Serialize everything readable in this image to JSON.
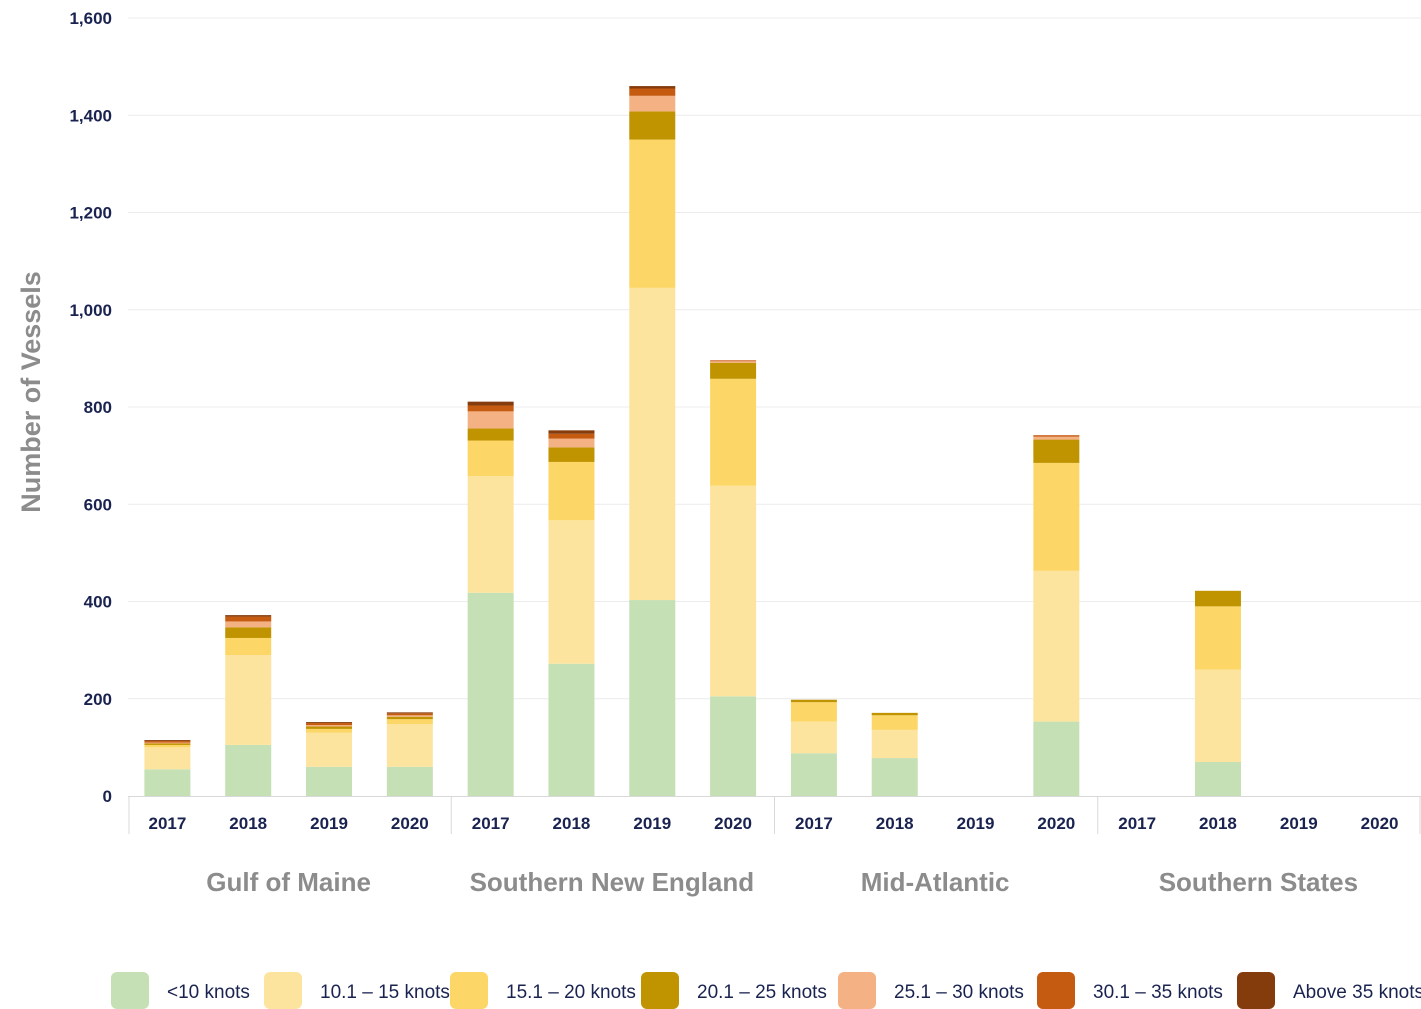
{
  "chart_data": {
    "type": "bar",
    "stacked": true,
    "ylabel": "Number of Vessels",
    "ylim": [
      0,
      1600
    ],
    "y_ticks": [
      0,
      200,
      400,
      600,
      800,
      1000,
      1200,
      1400,
      1600
    ],
    "y_tick_labels": [
      "0",
      "200",
      "400",
      "600",
      "800",
      "1,000",
      "1,200",
      "1,400",
      "1,600"
    ],
    "grid": true,
    "legend_position": "bottom",
    "groups": [
      "Gulf of Maine",
      "Southern New England",
      "Mid-Atlantic",
      "Southern States"
    ],
    "years": [
      "2017",
      "2018",
      "2019",
      "2020"
    ],
    "categories": [
      "Gulf of Maine 2017",
      "Gulf of Maine 2018",
      "Gulf of Maine 2019",
      "Gulf of Maine 2020",
      "Southern New England 2017",
      "Southern New England 2018",
      "Southern New England 2019",
      "Southern New England 2020",
      "Mid-Atlantic 2017",
      "Mid-Atlantic 2018",
      "Mid-Atlantic 2019",
      "Mid-Atlantic 2020",
      "Southern States 2017",
      "Southern States 2018",
      "Southern States 2019",
      "Southern States 2020"
    ],
    "series": [
      {
        "name": "<10 knots",
        "color": "#c5e0b4",
        "values": [
          55,
          105,
          60,
          60,
          418,
          272,
          403,
          205,
          88,
          78,
          0,
          153,
          0,
          70,
          0,
          0
        ]
      },
      {
        "name": "10.1 – 15 knots",
        "color": "#fde49e",
        "values": [
          45,
          185,
          70,
          88,
          240,
          295,
          642,
          433,
          65,
          58,
          0,
          310,
          0,
          190,
          0,
          0
        ]
      },
      {
        "name": "15.1 – 20 knots",
        "color": "#fcd767",
        "values": [
          5,
          35,
          8,
          10,
          73,
          120,
          305,
          220,
          40,
          30,
          0,
          222,
          0,
          130,
          0,
          0
        ]
      },
      {
        "name": "20.1 – 25 knots",
        "color": "#c09400",
        "values": [
          3,
          22,
          5,
          5,
          25,
          30,
          58,
          33,
          5,
          5,
          0,
          48,
          0,
          32,
          0,
          0
        ]
      },
      {
        "name": "25.1 – 30 knots",
        "color": "#f4b183",
        "values": [
          2,
          12,
          3,
          3,
          35,
          18,
          32,
          3,
          0,
          0,
          0,
          6,
          0,
          0,
          0,
          0
        ]
      },
      {
        "name": "30.1 – 35 knots",
        "color": "#c55a11",
        "values": [
          3,
          10,
          4,
          4,
          12,
          10,
          15,
          2,
          0,
          0,
          0,
          3,
          0,
          0,
          0,
          0
        ]
      },
      {
        "name": "Above 35 knots",
        "color": "#843c0c",
        "values": [
          2,
          3,
          2,
          2,
          8,
          7,
          5,
          0,
          0,
          0,
          0,
          0,
          0,
          0,
          0,
          0
        ]
      }
    ]
  }
}
